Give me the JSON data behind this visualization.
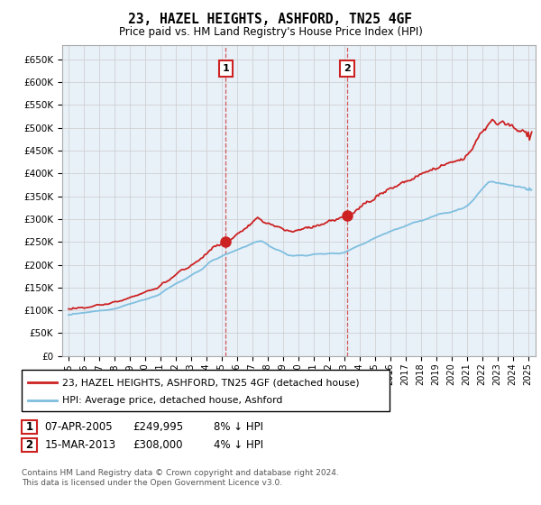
{
  "title": "23, HAZEL HEIGHTS, ASHFORD, TN25 4GF",
  "subtitle": "Price paid vs. HM Land Registry's House Price Index (HPI)",
  "ylabel_ticks": [
    "£0",
    "£50K",
    "£100K",
    "£150K",
    "£200K",
    "£250K",
    "£300K",
    "£350K",
    "£400K",
    "£450K",
    "£500K",
    "£550K",
    "£600K",
    "£650K"
  ],
  "ylim": [
    0,
    680000
  ],
  "ytick_values": [
    0,
    50000,
    100000,
    150000,
    200000,
    250000,
    300000,
    350000,
    400000,
    450000,
    500000,
    550000,
    600000,
    650000
  ],
  "xlim_start": 1994.6,
  "xlim_end": 2025.5,
  "hpi_color": "#7fbfdf",
  "price_color": "#cc2222",
  "sale1_date": 2005.27,
  "sale1_price": 249995,
  "sale2_date": 2013.21,
  "sale2_price": 308000,
  "grid_color": "#cccccc",
  "background_color": "#e8f0f8",
  "legend_label1": "23, HAZEL HEIGHTS, ASHFORD, TN25 4GF (detached house)",
  "legend_label2": "HPI: Average price, detached house, Ashford",
  "table_row1": [
    "1",
    "07-APR-2005",
    "£249,995",
    "8% ↓ HPI"
  ],
  "table_row2": [
    "2",
    "15-MAR-2013",
    "£308,000",
    "4% ↓ HPI"
  ],
  "footer": "Contains HM Land Registry data © Crown copyright and database right 2024.\nThis data is licensed under the Open Government Licence v3.0."
}
